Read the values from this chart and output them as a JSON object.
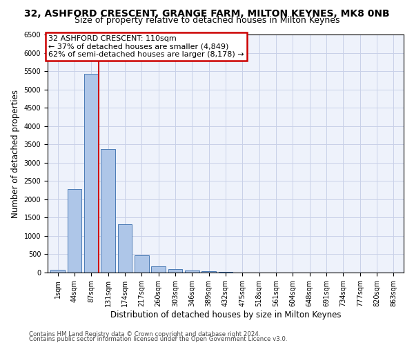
{
  "title": "32, ASHFORD CRESCENT, GRANGE FARM, MILTON KEYNES, MK8 0NB",
  "subtitle": "Size of property relative to detached houses in Milton Keynes",
  "xlabel": "Distribution of detached houses by size in Milton Keynes",
  "ylabel": "Number of detached properties",
  "footer_line1": "Contains HM Land Registry data © Crown copyright and database right 2024.",
  "footer_line2": "Contains public sector information licensed under the Open Government Licence v3.0.",
  "bar_labels": [
    "1sqm",
    "44sqm",
    "87sqm",
    "131sqm",
    "174sqm",
    "217sqm",
    "260sqm",
    "303sqm",
    "346sqm",
    "389sqm",
    "432sqm",
    "475sqm",
    "518sqm",
    "561sqm",
    "604sqm",
    "648sqm",
    "691sqm",
    "734sqm",
    "777sqm",
    "820sqm",
    "863sqm"
  ],
  "bar_values": [
    75,
    2275,
    5420,
    3380,
    1310,
    475,
    165,
    90,
    65,
    30,
    10,
    5,
    5,
    3,
    2,
    1,
    1,
    1,
    1,
    1,
    1
  ],
  "bar_color": "#aec6e8",
  "bar_edge_color": "#4a7ab5",
  "ylim": [
    0,
    6500
  ],
  "yticks": [
    0,
    500,
    1000,
    1500,
    2000,
    2500,
    3000,
    3500,
    4000,
    4500,
    5000,
    5500,
    6000,
    6500
  ],
  "red_line_x": 2.425,
  "annotation_text": "32 ASHFORD CRESCENT: 110sqm\n← 37% of detached houses are smaller (4,849)\n62% of semi-detached houses are larger (8,178) →",
  "annotation_box_color": "#ffffff",
  "annotation_border_color": "#cc0000",
  "bg_color": "#eef2fb",
  "grid_color": "#c8d0e8",
  "title_fontsize": 10,
  "subtitle_fontsize": 9,
  "tick_fontsize": 7,
  "ylabel_fontsize": 8.5,
  "xlabel_fontsize": 8.5,
  "footer_fontsize": 6.2
}
